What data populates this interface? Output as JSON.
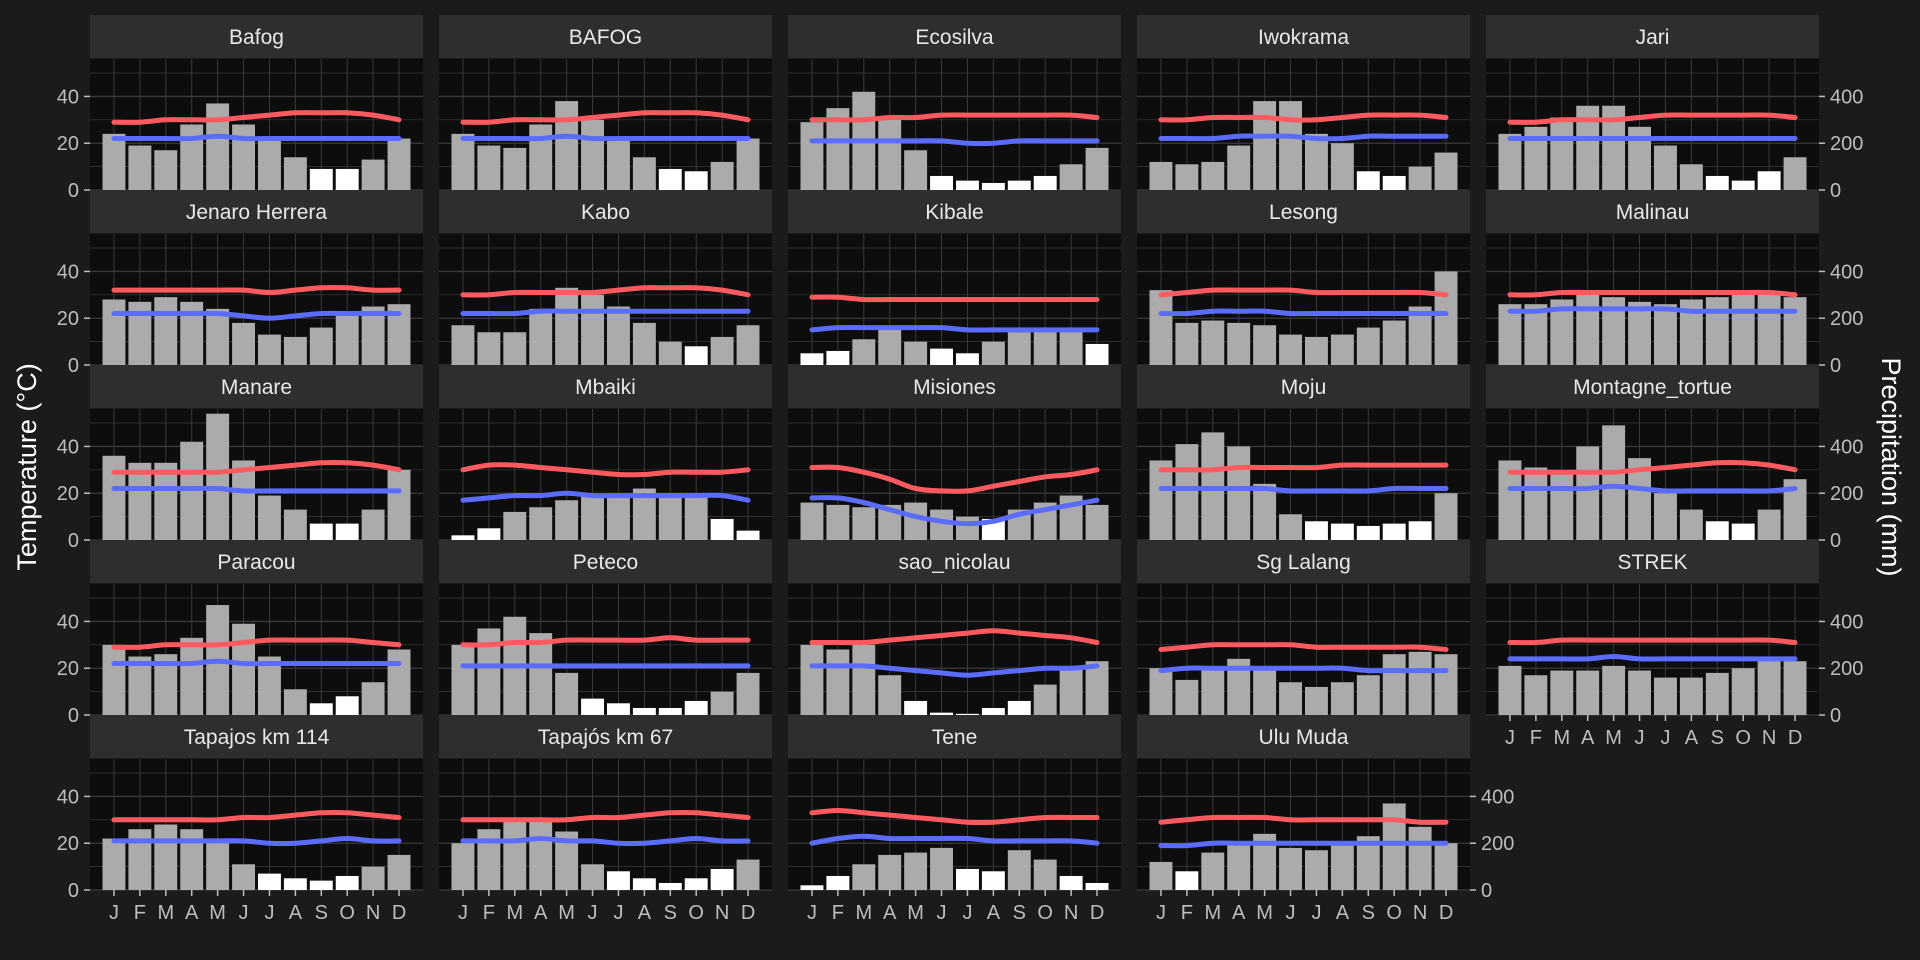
{
  "chart_data": {
    "type": "bar+line",
    "layout": "facet_wrap",
    "y_left_title": "Temperature (°C)",
    "y_right_title": "Precipitation (mm)",
    "y_left_ticks": [
      0,
      20,
      40
    ],
    "y_right_ticks": [
      0,
      200,
      400
    ],
    "y_left_range": [
      0,
      56
    ],
    "y_right_range": [
      0,
      560
    ],
    "months": [
      "J",
      "F",
      "M",
      "A",
      "M",
      "J",
      "J",
      "A",
      "S",
      "O",
      "N",
      "D"
    ],
    "bar_dry_threshold_mm": 100,
    "colors": {
      "background": "#1b1b1b",
      "panel": "#0d0d0d",
      "grid": "#3a3a3a",
      "strip": "#2e2e2e",
      "bar_wet": "#ababab",
      "bar_dry": "#ffffff",
      "tmax_line": "#ff5a5f",
      "tmin_line": "#5b6cff"
    },
    "sites": [
      {
        "name": "Bafog",
        "precip_mm": [
          240,
          190,
          170,
          280,
          370,
          280,
          220,
          140,
          90,
          90,
          130,
          220
        ],
        "tmax_c": [
          29,
          29,
          30,
          30,
          30,
          31,
          32,
          33,
          33,
          33,
          32,
          30
        ],
        "tmin_c": [
          22,
          22,
          22,
          22,
          23,
          22,
          22,
          22,
          22,
          22,
          22,
          22
        ]
      },
      {
        "name": "BAFOG",
        "precip_mm": [
          240,
          190,
          180,
          280,
          380,
          300,
          220,
          140,
          90,
          80,
          120,
          220
        ],
        "tmax_c": [
          29,
          29,
          30,
          30,
          30,
          31,
          32,
          33,
          33,
          33,
          32,
          30
        ],
        "tmin_c": [
          22,
          22,
          22,
          22,
          23,
          22,
          22,
          22,
          22,
          22,
          22,
          22
        ]
      },
      {
        "name": "Ecosilva",
        "precip_mm": [
          290,
          350,
          420,
          310,
          170,
          60,
          40,
          30,
          40,
          60,
          110,
          180
        ],
        "tmax_c": [
          30,
          30,
          30,
          31,
          31,
          32,
          32,
          32,
          32,
          32,
          32,
          31
        ],
        "tmin_c": [
          21,
          21,
          21,
          21,
          21,
          21,
          20,
          20,
          21,
          21,
          21,
          21
        ]
      },
      {
        "name": "Iwokrama",
        "precip_mm": [
          120,
          110,
          120,
          190,
          380,
          380,
          240,
          200,
          80,
          60,
          100,
          160
        ],
        "tmax_c": [
          30,
          30,
          31,
          31,
          31,
          30,
          30,
          31,
          32,
          32,
          32,
          31
        ],
        "tmin_c": [
          22,
          22,
          22,
          23,
          23,
          23,
          22,
          22,
          23,
          23,
          23,
          23
        ]
      },
      {
        "name": "Jari",
        "precip_mm": [
          240,
          270,
          310,
          360,
          360,
          270,
          190,
          110,
          60,
          40,
          80,
          140
        ],
        "tmax_c": [
          29,
          29,
          30,
          30,
          30,
          31,
          32,
          32,
          32,
          32,
          32,
          31
        ],
        "tmin_c": [
          22,
          22,
          22,
          22,
          22,
          22,
          22,
          22,
          22,
          22,
          22,
          22
        ]
      },
      {
        "name": "Jenaro Herrera",
        "precip_mm": [
          280,
          270,
          290,
          270,
          240,
          180,
          130,
          120,
          160,
          220,
          250,
          260
        ],
        "tmax_c": [
          32,
          32,
          32,
          32,
          32,
          32,
          31,
          32,
          33,
          33,
          32,
          32
        ],
        "tmin_c": [
          22,
          22,
          22,
          22,
          22,
          21,
          20,
          21,
          22,
          22,
          22,
          22
        ]
      },
      {
        "name": "Kabo",
        "precip_mm": [
          170,
          140,
          140,
          240,
          330,
          300,
          250,
          180,
          100,
          80,
          120,
          170
        ],
        "tmax_c": [
          30,
          30,
          31,
          31,
          31,
          31,
          32,
          33,
          33,
          33,
          32,
          30
        ],
        "tmin_c": [
          22,
          22,
          22,
          23,
          23,
          23,
          23,
          23,
          23,
          23,
          23,
          23
        ]
      },
      {
        "name": "Kibale",
        "precip_mm": [
          50,
          60,
          110,
          150,
          100,
          70,
          50,
          100,
          140,
          150,
          150,
          90
        ],
        "tmax_c": [
          29,
          29,
          28,
          28,
          28,
          28,
          28,
          28,
          28,
          28,
          28,
          28
        ],
        "tmin_c": [
          15,
          16,
          16,
          16,
          16,
          16,
          15,
          15,
          15,
          15,
          15,
          15
        ]
      },
      {
        "name": "Lesong",
        "precip_mm": [
          320,
          180,
          190,
          180,
          170,
          130,
          120,
          130,
          160,
          190,
          250,
          400
        ],
        "tmax_c": [
          30,
          31,
          32,
          32,
          32,
          32,
          31,
          31,
          31,
          31,
          31,
          30
        ],
        "tmin_c": [
          22,
          22,
          23,
          23,
          23,
          22,
          22,
          22,
          22,
          22,
          22,
          22
        ]
      },
      {
        "name": "Malinau",
        "precip_mm": [
          260,
          260,
          280,
          300,
          290,
          270,
          260,
          280,
          290,
          300,
          300,
          290
        ],
        "tmax_c": [
          30,
          30,
          31,
          31,
          31,
          31,
          31,
          31,
          31,
          31,
          31,
          30
        ],
        "tmin_c": [
          23,
          23,
          24,
          24,
          24,
          24,
          24,
          23,
          23,
          23,
          23,
          23
        ]
      },
      {
        "name": "Manare",
        "precip_mm": [
          360,
          330,
          330,
          420,
          540,
          340,
          190,
          130,
          70,
          70,
          130,
          300
        ],
        "tmax_c": [
          29,
          29,
          29,
          29,
          29,
          30,
          31,
          32,
          33,
          33,
          32,
          30
        ],
        "tmin_c": [
          22,
          22,
          22,
          22,
          22,
          21,
          21,
          21,
          21,
          21,
          21,
          21
        ]
      },
      {
        "name": "Mbaiki",
        "precip_mm": [
          20,
          50,
          120,
          140,
          170,
          190,
          190,
          220,
          200,
          200,
          90,
          40
        ],
        "tmax_c": [
          30,
          32,
          32,
          31,
          30,
          29,
          28,
          28,
          29,
          29,
          29,
          30
        ],
        "tmin_c": [
          17,
          18,
          19,
          19,
          20,
          19,
          19,
          19,
          19,
          19,
          19,
          17
        ]
      },
      {
        "name": "Misiones",
        "precip_mm": [
          160,
          150,
          140,
          150,
          160,
          130,
          100,
          90,
          130,
          160,
          190,
          150
        ],
        "tmax_c": [
          31,
          31,
          29,
          26,
          22,
          21,
          21,
          23,
          25,
          27,
          28,
          30
        ],
        "tmin_c": [
          18,
          18,
          16,
          13,
          10,
          8,
          7,
          8,
          11,
          13,
          15,
          17
        ]
      },
      {
        "name": "Moju",
        "precip_mm": [
          340,
          410,
          460,
          400,
          240,
          110,
          80,
          70,
          60,
          70,
          80,
          200
        ],
        "tmax_c": [
          30,
          30,
          30,
          31,
          31,
          31,
          31,
          32,
          32,
          32,
          32,
          32
        ],
        "tmin_c": [
          22,
          22,
          22,
          22,
          22,
          21,
          21,
          21,
          21,
          22,
          22,
          22
        ]
      },
      {
        "name": "Montagne_tortue",
        "precip_mm": [
          340,
          310,
          280,
          400,
          490,
          350,
          200,
          130,
          80,
          70,
          130,
          260
        ],
        "tmax_c": [
          29,
          29,
          29,
          29,
          29,
          30,
          31,
          32,
          33,
          33,
          32,
          30
        ],
        "tmin_c": [
          22,
          22,
          22,
          22,
          23,
          22,
          21,
          21,
          21,
          21,
          21,
          22
        ]
      },
      {
        "name": "Paracou",
        "precip_mm": [
          300,
          250,
          260,
          330,
          470,
          390,
          250,
          110,
          50,
          80,
          140,
          280
        ],
        "tmax_c": [
          29,
          29,
          30,
          30,
          30,
          31,
          32,
          32,
          32,
          32,
          31,
          30
        ],
        "tmin_c": [
          22,
          22,
          22,
          22,
          23,
          22,
          22,
          22,
          22,
          22,
          22,
          22
        ]
      },
      {
        "name": "Peteco",
        "precip_mm": [
          300,
          370,
          420,
          350,
          180,
          70,
          50,
          30,
          30,
          60,
          100,
          180
        ],
        "tmax_c": [
          30,
          30,
          31,
          31,
          32,
          32,
          32,
          32,
          33,
          32,
          32,
          32
        ],
        "tmin_c": [
          21,
          21,
          21,
          21,
          21,
          21,
          21,
          21,
          21,
          21,
          21,
          21
        ]
      },
      {
        "name": "sao_nicolau",
        "precip_mm": [
          300,
          280,
          300,
          170,
          60,
          10,
          5,
          30,
          60,
          130,
          200,
          230
        ],
        "tmax_c": [
          31,
          31,
          31,
          32,
          33,
          34,
          35,
          36,
          35,
          34,
          33,
          31
        ],
        "tmin_c": [
          21,
          21,
          21,
          20,
          19,
          18,
          17,
          18,
          19,
          20,
          20,
          21
        ]
      },
      {
        "name": "Sg Lalang",
        "precip_mm": [
          200,
          150,
          200,
          240,
          200,
          140,
          120,
          140,
          170,
          260,
          270,
          260
        ],
        "tmax_c": [
          28,
          29,
          30,
          30,
          30,
          30,
          29,
          29,
          29,
          29,
          29,
          28
        ],
        "tmin_c": [
          19,
          20,
          20,
          20,
          20,
          20,
          20,
          20,
          19,
          19,
          19,
          19
        ]
      },
      {
        "name": "STREK",
        "precip_mm": [
          210,
          170,
          190,
          190,
          210,
          190,
          160,
          160,
          180,
          200,
          250,
          230
        ],
        "tmax_c": [
          31,
          31,
          32,
          32,
          32,
          32,
          32,
          32,
          32,
          32,
          32,
          31
        ],
        "tmin_c": [
          24,
          24,
          24,
          24,
          25,
          24,
          24,
          24,
          24,
          24,
          24,
          24
        ]
      },
      {
        "name": "Tapajos km 114",
        "precip_mm": [
          220,
          260,
          280,
          260,
          200,
          110,
          70,
          50,
          40,
          60,
          100,
          150
        ],
        "tmax_c": [
          30,
          30,
          30,
          30,
          30,
          31,
          31,
          32,
          33,
          33,
          32,
          31
        ],
        "tmin_c": [
          21,
          21,
          21,
          21,
          21,
          21,
          20,
          20,
          21,
          22,
          21,
          21
        ]
      },
      {
        "name": "Tapajós km 67",
        "precip_mm": [
          200,
          260,
          310,
          310,
          250,
          110,
          80,
          50,
          30,
          50,
          90,
          130
        ],
        "tmax_c": [
          30,
          30,
          30,
          30,
          30,
          31,
          31,
          32,
          33,
          33,
          32,
          31
        ],
        "tmin_c": [
          21,
          21,
          21,
          22,
          21,
          21,
          20,
          20,
          21,
          22,
          21,
          21
        ]
      },
      {
        "name": "Tene",
        "precip_mm": [
          20,
          60,
          110,
          150,
          160,
          180,
          90,
          80,
          170,
          130,
          60,
          30
        ],
        "tmax_c": [
          33,
          34,
          33,
          32,
          31,
          30,
          29,
          29,
          30,
          31,
          31,
          31
        ],
        "tmin_c": [
          20,
          22,
          23,
          22,
          22,
          22,
          22,
          21,
          21,
          21,
          21,
          20
        ]
      },
      {
        "name": "Ulu Muda",
        "precip_mm": [
          120,
          80,
          160,
          200,
          240,
          180,
          170,
          190,
          230,
          370,
          270,
          200
        ],
        "tmax_c": [
          29,
          30,
          31,
          31,
          31,
          30,
          30,
          30,
          30,
          30,
          29,
          29
        ],
        "tmin_c": [
          19,
          19,
          20,
          20,
          20,
          20,
          20,
          20,
          20,
          20,
          20,
          20
        ]
      }
    ]
  }
}
